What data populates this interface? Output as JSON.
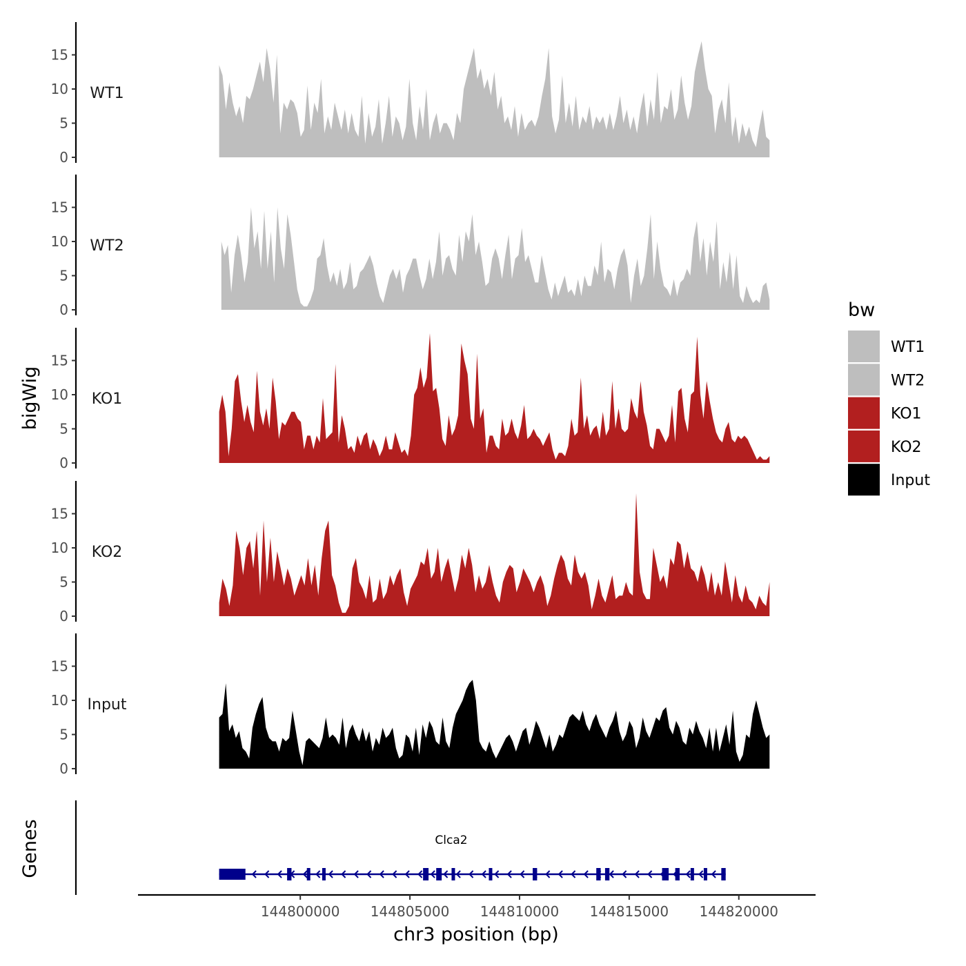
{
  "chart_data": {
    "type": "area",
    "region": {
      "chromosome": "chr3",
      "start": 144796300,
      "end": 144821400
    },
    "xlabel": "chr3 position (bp)",
    "ylabel_tracks": "bigWig",
    "ylabel_genes": "Genes",
    "xlim": [
      144792600,
      144823500
    ],
    "x_ticks": [
      144800000,
      144805000,
      144810000,
      144815000,
      144820000
    ],
    "x_tick_labels": [
      "144800000",
      "144805000",
      "144810000",
      "144815000",
      "144820000"
    ],
    "ylim": [
      0,
      19.8
    ],
    "y_ticks": [
      0,
      5,
      10,
      15
    ],
    "y_tick_labels": [
      "0",
      "5",
      "10",
      "15"
    ],
    "legend": {
      "title": "bw",
      "entries": [
        {
          "label": "WT1",
          "color": "#bebebe"
        },
        {
          "label": "WT2",
          "color": "#bebebe"
        },
        {
          "label": "KO1",
          "color": "#b21f1f"
        },
        {
          "label": "KO2",
          "color": "#b21f1f"
        },
        {
          "label": "Input",
          "color": "#000000"
        }
      ]
    },
    "series": [
      {
        "name": "WT1",
        "color": "#bebebe",
        "x_start": 144796300,
        "x_end": 144821400,
        "values": [
          13.5,
          12,
          7,
          11,
          8,
          6,
          7.5,
          5,
          9,
          8.5,
          10,
          12,
          14,
          11,
          16,
          13,
          8,
          15,
          3.5,
          8,
          7,
          8.5,
          8,
          6.5,
          3,
          4,
          10.5,
          4,
          8,
          6.5,
          11.5,
          3.5,
          6,
          4,
          8,
          6,
          4,
          7,
          3.5,
          6.5,
          4,
          3,
          9,
          2,
          6.5,
          3,
          4.5,
          8.5,
          2,
          5,
          9,
          3,
          6,
          5,
          2.5,
          4.5,
          11.5,
          5,
          2.5,
          7.5,
          4,
          10,
          2.5,
          5,
          6.5,
          3.5,
          5,
          5,
          4,
          2.5,
          6.5,
          5,
          10,
          12,
          14,
          16,
          11.5,
          13,
          10,
          11.5,
          9,
          12.5,
          7,
          9,
          5,
          6,
          4,
          7.5,
          3,
          6.5,
          4,
          5,
          5.5,
          4.5,
          6,
          9,
          11.5,
          16,
          6,
          3.5,
          5.5,
          12,
          5,
          8,
          4.5,
          9,
          4,
          6,
          5,
          7.5,
          4,
          6,
          5,
          6,
          4,
          6.5,
          4,
          6,
          9,
          5,
          7,
          4,
          6,
          3.5,
          7,
          9.5,
          4.5,
          8.5,
          5.5,
          12.5,
          5,
          7.5,
          7,
          10,
          5.5,
          7,
          12,
          8,
          5.5,
          7.5,
          12.5,
          15,
          17,
          13,
          10,
          9,
          3.5,
          7,
          8.5,
          5,
          11,
          3,
          6,
          2,
          5,
          3,
          4.5,
          2.5,
          1.5,
          4.5,
          7,
          3,
          2.5
        ],
        "values_sampled": true
      },
      {
        "name": "WT2",
        "color": "#bebebe",
        "x_start": 144796400,
        "x_end": 144821400,
        "values": [
          10,
          8,
          9.5,
          2.5,
          8,
          11,
          8,
          4,
          7,
          15,
          9,
          11.5,
          6,
          14.5,
          6,
          11.5,
          4,
          15,
          9,
          6,
          14,
          11,
          7,
          3,
          1,
          0.5,
          0.5,
          1.5,
          3,
          7.5,
          8,
          10.5,
          6.5,
          4,
          5.5,
          3.5,
          6,
          3,
          4,
          7,
          3,
          3.5,
          5.5,
          6,
          7,
          8,
          6.5,
          4,
          2,
          1,
          3,
          5,
          6,
          4.5,
          6,
          2.5,
          5,
          6,
          7.5,
          7.5,
          5,
          3,
          4.5,
          7.5,
          4.5,
          7,
          11.5,
          5,
          7.5,
          8,
          6,
          5,
          11,
          7,
          11.5,
          10,
          14,
          8,
          10,
          7,
          3.5,
          4,
          7.5,
          9,
          7.5,
          4.5,
          8,
          11,
          4.5,
          7.5,
          8,
          12,
          7,
          8,
          6,
          4,
          4,
          8,
          5.5,
          3,
          1.5,
          4,
          2,
          3.5,
          5,
          2.5,
          3,
          2,
          4.5,
          2,
          5,
          3.5,
          3.5,
          6.5,
          5,
          10,
          4,
          6,
          5.5,
          3,
          6,
          8,
          9,
          6.5,
          1,
          5,
          7.5,
          3.5,
          5,
          9,
          14,
          4.5,
          10,
          6,
          3.5,
          3,
          2,
          4.5,
          2,
          4,
          4.5,
          6,
          5,
          10.5,
          13,
          7,
          10.5,
          5,
          10,
          7,
          13,
          3,
          7,
          4,
          8.5,
          3,
          8,
          2,
          1,
          3.5,
          2,
          1,
          1.5,
          1,
          3.5,
          4,
          1.5
        ],
        "values_sampled": true
      },
      {
        "name": "KO1",
        "color": "#b21f1f",
        "x_start": 144796300,
        "x_end": 144821400,
        "values": [
          7.5,
          10,
          7.5,
          1,
          5,
          12,
          13,
          9,
          6,
          8.5,
          6,
          4.5,
          13.5,
          7.5,
          5.5,
          8,
          5,
          12.5,
          9,
          3.5,
          6,
          5.5,
          6.5,
          7.5,
          7.5,
          6.5,
          6,
          2,
          4,
          4,
          2,
          4,
          3,
          9.5,
          3.5,
          4,
          4.5,
          14.5,
          3,
          7,
          5,
          2,
          2.5,
          1.5,
          4,
          2.5,
          4,
          4.5,
          2,
          3.5,
          2.5,
          1,
          2,
          4,
          2,
          2,
          4.5,
          3,
          1.5,
          2,
          1,
          4,
          10,
          11,
          14,
          11,
          12.5,
          19,
          10.5,
          11,
          8,
          3.5,
          2.5,
          7,
          4,
          5,
          7,
          17.5,
          15,
          13,
          6.5,
          5,
          16,
          6.5,
          8,
          1.5,
          4,
          4,
          2.5,
          2,
          6.5,
          4,
          4.5,
          6.5,
          4.5,
          3.5,
          5.5,
          8.5,
          3.5,
          4,
          5,
          4,
          3.5,
          2.5,
          3.5,
          4.5,
          2,
          0.5,
          1.5,
          1.5,
          1,
          2.5,
          6.5,
          4,
          4.5,
          12.5,
          5,
          7,
          4,
          5,
          5.5,
          3.5,
          7.5,
          4,
          5,
          12,
          5,
          8,
          5,
          4.5,
          5,
          9.5,
          7.5,
          6.5,
          12,
          7.5,
          5.5,
          2.5,
          2,
          5,
          5,
          4,
          3,
          4,
          8.5,
          3,
          10.5,
          11,
          6.5,
          4.5,
          10,
          10.5,
          18.5,
          10,
          6.5,
          12,
          9,
          6.5,
          4.5,
          3.5,
          3,
          5,
          6,
          3.5,
          3,
          4,
          3.5,
          4,
          3.5,
          2.5,
          1.5,
          0.5,
          1,
          0.5,
          0.5,
          1
        ],
        "values_sampled": true
      },
      {
        "name": "KO2",
        "color": "#b21f1f",
        "x_start": 144796300,
        "x_end": 144821400,
        "values": [
          2,
          5.5,
          4,
          1.5,
          4.5,
          12.5,
          10,
          6,
          10,
          11,
          7,
          12.5,
          3,
          14,
          5,
          11.5,
          5,
          9.5,
          7,
          4.5,
          7,
          5.5,
          3,
          4.5,
          6,
          4.5,
          8.5,
          4.5,
          7.5,
          3,
          8.5,
          12.5,
          14,
          6,
          4.5,
          2,
          0.5,
          0.5,
          1.5,
          7,
          8.5,
          5,
          4,
          2.5,
          6,
          2,
          2.5,
          5.5,
          2.5,
          3.5,
          6,
          4.5,
          6,
          7,
          3.5,
          1.5,
          4,
          5,
          6,
          8,
          7.5,
          10,
          5.5,
          6.5,
          10,
          5,
          7,
          8.5,
          6,
          3.5,
          5.5,
          9,
          7,
          10,
          7.5,
          3.5,
          6,
          4,
          5,
          7.5,
          5,
          3,
          2,
          5,
          6.5,
          7.5,
          7,
          3.5,
          5,
          7,
          6,
          5,
          3.5,
          5,
          6,
          4.5,
          1.5,
          3,
          5.5,
          7.5,
          9,
          8,
          5.5,
          4.5,
          9,
          6.5,
          5.5,
          6.5,
          4.5,
          1,
          3,
          5.5,
          3,
          2,
          4,
          6,
          2.5,
          3,
          3,
          5,
          3.5,
          3,
          18,
          6.5,
          3.5,
          2.5,
          2.5,
          10,
          7.5,
          5,
          6,
          4,
          8.5,
          7.5,
          11,
          10.5,
          7,
          9.5,
          7,
          6.5,
          5,
          7.5,
          6,
          3.5,
          6.5,
          3,
          5,
          3,
          8,
          5,
          2,
          6,
          3,
          2,
          4.5,
          2.5,
          2,
          1,
          3,
          2,
          1.5,
          5
        ],
        "values_sampled": true
      },
      {
        "name": "Input",
        "color": "#000000",
        "x_start": 144796300,
        "x_end": 144821400,
        "values": [
          7.5,
          8,
          12.5,
          5.5,
          6.5,
          4.5,
          5.5,
          3,
          2.5,
          1.5,
          6,
          8,
          9.5,
          10.5,
          6,
          4.5,
          4,
          4,
          2.5,
          4.5,
          4,
          4.5,
          8.5,
          5.5,
          2.5,
          0.5,
          4,
          4.5,
          4,
          3.5,
          3,
          4.5,
          7.5,
          4.5,
          5,
          4.5,
          3.5,
          7.5,
          3,
          5.5,
          6.5,
          5,
          4,
          6,
          4,
          5.5,
          2.5,
          4.5,
          3.5,
          6,
          4.5,
          5,
          6,
          3,
          1.5,
          2,
          5,
          4.5,
          2.5,
          6,
          2,
          6.5,
          4.5,
          7,
          6,
          4,
          3.5,
          7.5,
          4,
          3,
          6,
          8,
          9,
          10,
          11.5,
          12.5,
          13,
          10,
          4,
          3,
          2.5,
          4,
          2.5,
          1.5,
          2.5,
          3.5,
          4.5,
          5,
          4,
          2.5,
          4,
          5.5,
          6,
          3.5,
          5,
          7,
          6,
          4.5,
          3,
          5,
          2.5,
          3.5,
          5,
          4.5,
          6,
          7.5,
          8,
          7.5,
          7,
          8.5,
          6.5,
          5.5,
          7,
          8,
          6.5,
          5.5,
          4.5,
          6,
          7,
          8.5,
          5.5,
          4,
          5,
          7,
          6,
          3,
          4.5,
          7.5,
          5.5,
          4.5,
          6,
          7.5,
          7,
          8.5,
          9,
          6,
          5,
          7,
          6,
          4,
          3.5,
          6,
          5,
          7,
          5.5,
          4.5,
          3,
          6,
          2.5,
          6,
          2.5,
          4.5,
          6.5,
          3.5,
          8.5,
          2.5,
          1,
          2,
          5,
          4.5,
          8,
          10,
          8,
          6,
          4.5,
          5
        ],
        "values_sampled": true
      }
    ],
    "genes": [
      {
        "name": "Clca2",
        "strand": "-",
        "color": "#00008b",
        "start": 144796300,
        "end": 144819400,
        "exons": [
          [
            144796300,
            144797500
          ],
          [
            144799400,
            144799600
          ],
          [
            144800300,
            144800450
          ],
          [
            144801000,
            144801150
          ],
          [
            144805600,
            144805850
          ],
          [
            144806200,
            144806450
          ],
          [
            144806900,
            144807000
          ],
          [
            144808600,
            144808750
          ],
          [
            144810600,
            144810800
          ],
          [
            144813500,
            144813700
          ],
          [
            144813900,
            144814100
          ],
          [
            144816500,
            144816800
          ],
          [
            144817100,
            144817300
          ],
          [
            144817800,
            144817950
          ],
          [
            144818400,
            144818500
          ],
          [
            144819200,
            144819400
          ]
        ]
      }
    ]
  }
}
